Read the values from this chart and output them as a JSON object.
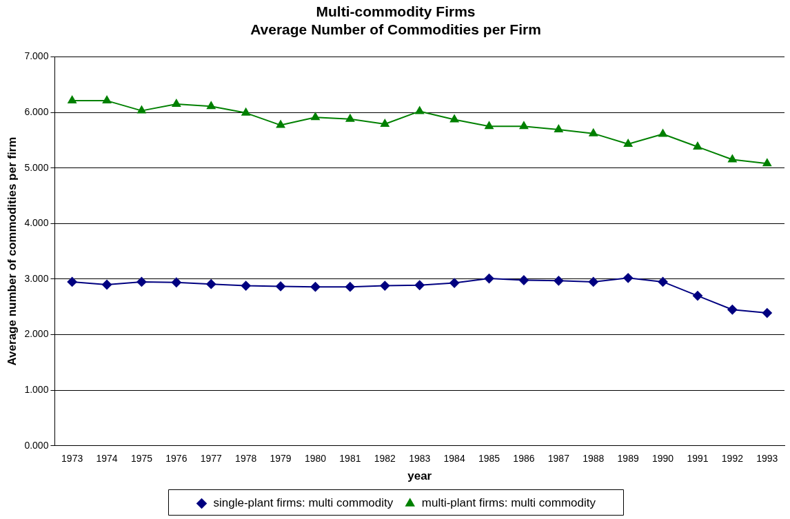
{
  "chart_data": {
    "type": "line",
    "title": "Multi-commodity Firms\nAverage Number of Commodities per Firm",
    "xlabel": "year",
    "ylabel": "Average number of commodities per firm",
    "categories": [
      "1973",
      "1974",
      "1975",
      "1976",
      "1977",
      "1978",
      "1979",
      "1980",
      "1981",
      "1982",
      "1983",
      "1984",
      "1985",
      "1986",
      "1987",
      "1988",
      "1989",
      "1990",
      "1991",
      "1992",
      "1993"
    ],
    "series": [
      {
        "name": "single-plant firms: multi commodity",
        "color": "#000080",
        "marker": "diamond",
        "values": [
          2.95,
          2.9,
          2.95,
          2.94,
          2.91,
          2.88,
          2.87,
          2.86,
          2.86,
          2.88,
          2.89,
          2.93,
          3.01,
          2.98,
          2.97,
          2.95,
          3.02,
          2.95,
          2.7,
          2.45,
          2.39
        ]
      },
      {
        "name": "multi-plant firms: multi commodity",
        "color": "#008000",
        "marker": "triangle",
        "values": [
          6.21,
          6.21,
          6.03,
          6.15,
          6.11,
          5.99,
          5.77,
          5.91,
          5.88,
          5.79,
          6.02,
          5.87,
          5.75,
          5.75,
          5.69,
          5.62,
          5.43,
          5.61,
          5.38,
          5.15,
          5.08
        ]
      }
    ],
    "ylim": [
      0,
      7
    ],
    "yticks": [
      {
        "value": 0,
        "label": "0.000"
      },
      {
        "value": 1,
        "label": "1.000"
      },
      {
        "value": 2,
        "label": "2.000"
      },
      {
        "value": 3,
        "label": "3.000"
      },
      {
        "value": 4,
        "label": "4.000"
      },
      {
        "value": 5,
        "label": "5.000"
      },
      {
        "value": 6,
        "label": "6.000"
      },
      {
        "value": 7,
        "label": "7.000"
      }
    ],
    "grid": "y",
    "legend": "bottom",
    "line_style": "solid"
  }
}
